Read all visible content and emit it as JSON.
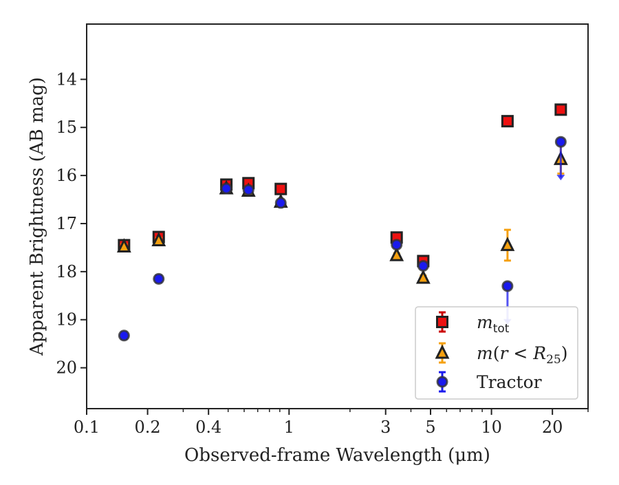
{
  "chart_data": {
    "type": "scatter",
    "xlabel": "Observed-frame Wavelength (μm)",
    "ylabel": "Apparent Brightness (AB mag)",
    "xscale": "log",
    "xlim": [
      0.1,
      30
    ],
    "ylim": [
      20.85,
      12.85
    ],
    "y_inverted": true,
    "grid": false,
    "legend_position": "lower-right",
    "x_ticks": [
      {
        "value": 0.1,
        "label": "0.1"
      },
      {
        "value": 0.2,
        "label": "0.2"
      },
      {
        "value": 0.4,
        "label": "0.4"
      },
      {
        "value": 1,
        "label": "1"
      },
      {
        "value": 3,
        "label": "3"
      },
      {
        "value": 5,
        "label": "5"
      },
      {
        "value": 10,
        "label": "10"
      },
      {
        "value": 20,
        "label": "20"
      }
    ],
    "y_ticks": [
      {
        "value": 14,
        "label": "14"
      },
      {
        "value": 15,
        "label": "15"
      },
      {
        "value": 16,
        "label": "16"
      },
      {
        "value": 17,
        "label": "17"
      },
      {
        "value": 18,
        "label": "18"
      },
      {
        "value": 19,
        "label": "19"
      },
      {
        "value": 20,
        "label": "20"
      }
    ],
    "series": [
      {
        "name": "m_tot",
        "legend_label": "m_tot",
        "marker": "square",
        "color": "#ee1111",
        "errcolor": "#cc0000",
        "points": [
          {
            "x": 0.153,
            "y": 17.45,
            "err": 0.05
          },
          {
            "x": 0.227,
            "y": 17.28,
            "err": 0.05
          },
          {
            "x": 0.49,
            "y": 16.19,
            "err": 0.04
          },
          {
            "x": 0.63,
            "y": 16.16,
            "err": 0.04
          },
          {
            "x": 0.91,
            "y": 16.28,
            "err": 0.04
          },
          {
            "x": 3.4,
            "y": 17.29,
            "err": 0.04
          },
          {
            "x": 4.6,
            "y": 17.78,
            "err": 0.04
          },
          {
            "x": 12.0,
            "y": 14.87,
            "err": 0.04
          },
          {
            "x": 22.0,
            "y": 14.63,
            "err": 0.05
          }
        ]
      },
      {
        "name": "m(r < R25)",
        "legend_label": "m(r < R25)",
        "marker": "triangle",
        "color": "#f5a00f",
        "errcolor": "#f5a00f",
        "points": [
          {
            "x": 0.153,
            "y": 17.48,
            "err": 0.05
          },
          {
            "x": 0.227,
            "y": 17.35,
            "err": 0.05
          },
          {
            "x": 0.49,
            "y": 16.27,
            "err": 0.04
          },
          {
            "x": 0.63,
            "y": 16.32,
            "err": 0.04
          },
          {
            "x": 0.91,
            "y": 16.55,
            "err": 0.04
          },
          {
            "x": 3.4,
            "y": 17.66,
            "err": 0.04
          },
          {
            "x": 4.6,
            "y": 18.13,
            "err": 0.05
          },
          {
            "x": 12.0,
            "y": 17.45,
            "err": 0.32
          },
          {
            "x": 22.0,
            "y": 15.66,
            "err": 0.3
          }
        ]
      },
      {
        "name": "Tractor",
        "legend_label": "Tractor",
        "marker": "circle",
        "color": "#1a1aee",
        "errcolor": "#1a1aee",
        "points": [
          {
            "x": 0.153,
            "y": 19.33,
            "err": 0.07
          },
          {
            "x": 0.227,
            "y": 18.15,
            "err": 0.07
          },
          {
            "x": 0.49,
            "y": 16.27,
            "err": 0.04
          },
          {
            "x": 0.63,
            "y": 16.3,
            "err": 0.04
          },
          {
            "x": 0.91,
            "y": 16.57,
            "err": 0.04
          },
          {
            "x": 3.4,
            "y": 17.44,
            "err": 0.05
          },
          {
            "x": 4.6,
            "y": 17.88,
            "err": 0.05
          },
          {
            "x": 12.0,
            "y": 18.3,
            "upper_limit_to": 19.1
          },
          {
            "x": 22.0,
            "y": 15.3,
            "upper_limit_to": 16.1
          }
        ]
      }
    ]
  }
}
